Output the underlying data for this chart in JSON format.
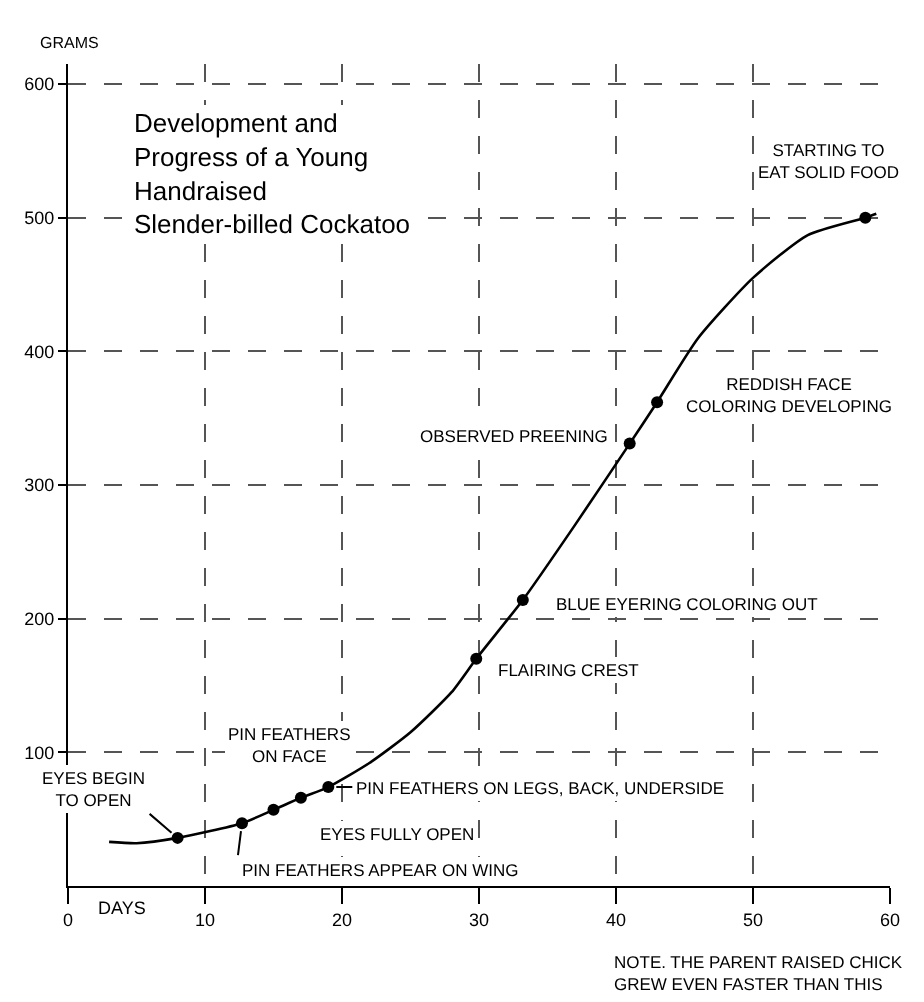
{
  "chart_data": {
    "type": "line",
    "title": "Development and\nProgress of a Young\nHandraised\nSlender-billed Cockatoo",
    "xlabel": "DAYS",
    "ylabel": "GRAMS",
    "x": [
      3,
      5,
      8,
      12.7,
      15,
      17,
      19,
      22,
      25,
      28,
      29.8,
      33.2,
      37,
      41,
      43,
      46,
      50,
      54,
      58.2,
      59
    ],
    "series": [
      {
        "color": "#000000",
        "marker": "none",
        "values": [
          33,
          32,
          36,
          47,
          57,
          66,
          74,
          92,
          115,
          145,
          170,
          214,
          270,
          331,
          362,
          410,
          455,
          487,
          500,
          503
        ]
      },
      {
        "type": "scatter",
        "color": "#000000",
        "marker": "circle",
        "x": [
          8,
          12.7,
          15,
          17,
          19,
          29.8,
          33.2,
          41,
          43,
          58.2
        ],
        "values": [
          36,
          47,
          57,
          66,
          74,
          170,
          214,
          331,
          362,
          500
        ]
      }
    ],
    "annotations": [
      {
        "text": "EYES BEGIN\nTO OPEN",
        "x": 8,
        "y": 36
      },
      {
        "text": "PIN FEATHERS APPEAR ON WING",
        "x": 12.7,
        "y": 47
      },
      {
        "text": "EYES FULLY OPEN",
        "x": 15,
        "y": 57
      },
      {
        "text": "PIN FEATHERS\nON FACE",
        "x": 17,
        "y": 66
      },
      {
        "text": "PIN FEATHERS ON LEGS, BACK, UNDERSIDE",
        "x": 19,
        "y": 74
      },
      {
        "text": "FLAIRING CREST",
        "x": 29.8,
        "y": 170
      },
      {
        "text": "BLUE EYERING COLORING OUT",
        "x": 33.2,
        "y": 214
      },
      {
        "text": "OBSERVED PREENING",
        "x": 41,
        "y": 331
      },
      {
        "text": "REDDISH FACE\nCOLORING DEVELOPING",
        "x": 43,
        "y": 362
      },
      {
        "text": "STARTING TO\nEAT SOLID FOOD",
        "x": 58.2,
        "y": 500
      },
      "NOTE. THE PARENT RAISED CHICK\nGREW EVEN FASTER THAN THIS"
    ],
    "xlim": [
      0,
      60
    ],
    "ylim": [
      0,
      615
    ],
    "xticks": [
      0,
      10,
      20,
      30,
      40,
      50,
      60
    ],
    "yticks": [
      100,
      200,
      300,
      400,
      500,
      600
    ],
    "grid": true,
    "line_style": "solid"
  }
}
